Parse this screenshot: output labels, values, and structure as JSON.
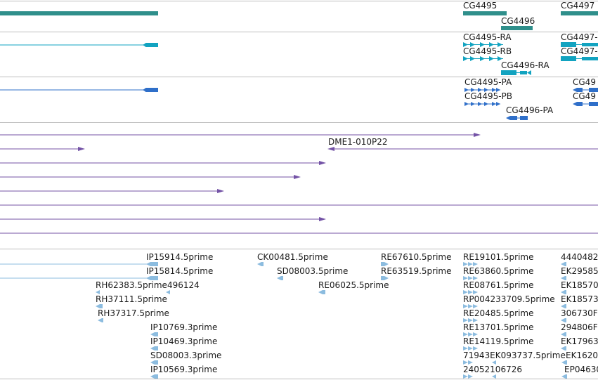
{
  "colors": {
    "gene": "#2f8f8b",
    "mrna": "#12a3c0",
    "cds": "#2f6fc9",
    "clone": "#7453a6",
    "est": "#8cbcdf",
    "separator": "#bbbbbb"
  },
  "tracks": {
    "genes": [
      {
        "label": "CG4495",
        "icon": "gene-bar"
      },
      {
        "label": "CG4496",
        "icon": "gene-bar"
      },
      {
        "label": "CG4497",
        "icon": "gene-bar"
      }
    ],
    "transcripts": [
      {
        "label": "CG4495-RA",
        "icon": "transcript-arrows"
      },
      {
        "label": "CG4495-RB",
        "icon": "transcript-arrows"
      },
      {
        "label": "CG4496-RA",
        "icon": "transcript-arrows"
      },
      {
        "label": "CG4497-",
        "icon": "transcript-arrows"
      },
      {
        "label": "CG4497-",
        "icon": "transcript-arrows"
      }
    ],
    "proteins": [
      {
        "label": "CG4495-PA",
        "icon": "protein-arrows"
      },
      {
        "label": "CG4495-PB",
        "icon": "protein-arrows"
      },
      {
        "label": "CG4496-PA",
        "icon": "protein-arrows"
      },
      {
        "label": "CG49",
        "icon": "protein-arrows"
      },
      {
        "label": "CG49",
        "icon": "protein-arrows"
      }
    ],
    "clones": [
      {
        "label": "DME1-010P22",
        "icon": "clone-line"
      }
    ],
    "ests": [
      {
        "label": "IP15914.5prime"
      },
      {
        "label": "IP15814.5prime"
      },
      {
        "label": "RH62383.5prime496124"
      },
      {
        "label": "RH37111.5prime"
      },
      {
        "label": "RH37317.5prime"
      },
      {
        "label": "IP10769.3prime"
      },
      {
        "label": "IP10469.3prime"
      },
      {
        "label": "SD08003.3prime"
      },
      {
        "label": "IP10569.3prime"
      },
      {
        "label": "CK00481.5prime"
      },
      {
        "label": "SD08003.5prime"
      },
      {
        "label": "RE67610.5prime"
      },
      {
        "label": "RE63519.5prime"
      },
      {
        "label": "RE06025.5prime"
      },
      {
        "label": "RE19101.5prime"
      },
      {
        "label": "RE63860.5prime"
      },
      {
        "label": "RE08761.5prime"
      },
      {
        "label": "RP004233709.5prime"
      },
      {
        "label": "RE20485.5prime"
      },
      {
        "label": "RE13701.5prime"
      },
      {
        "label": "RE14119.5prime"
      },
      {
        "label": "71943EK093737.5prime"
      },
      {
        "label": "24052106726"
      },
      {
        "label": "4440482"
      },
      {
        "label": "EK29585"
      },
      {
        "label": "EK18570"
      },
      {
        "label": "EK18573"
      },
      {
        "label": "306730F"
      },
      {
        "label": "294806F"
      },
      {
        "label": "EK17963"
      },
      {
        "label": "EK1620"
      },
      {
        "label": "EP04630"
      }
    ]
  }
}
